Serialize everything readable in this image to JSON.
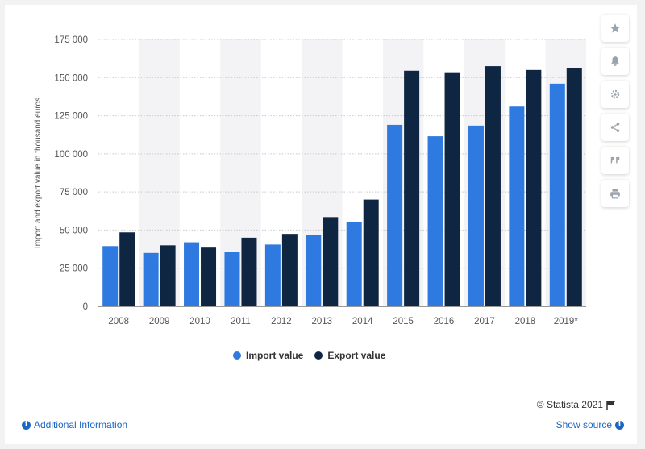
{
  "chart_data": {
    "type": "bar",
    "categories": [
      "2008",
      "2009",
      "2010",
      "2011",
      "2012",
      "2013",
      "2014",
      "2015",
      "2016",
      "2017",
      "2018",
      "2019*"
    ],
    "series": [
      {
        "name": "Import value",
        "color": "#2e7ae0",
        "values": [
          39500,
          35000,
          42000,
          35500,
          40500,
          47000,
          55500,
          119000,
          111500,
          118500,
          131000,
          146000
        ]
      },
      {
        "name": "Export value",
        "color": "#0f2642",
        "values": [
          48500,
          40000,
          38500,
          45000,
          47500,
          58500,
          70000,
          154500,
          153500,
          157500,
          155000,
          156500
        ]
      }
    ],
    "ylabel": "Import and export value in thousand euros",
    "xlabel": "",
    "ylim": [
      0,
      175000
    ],
    "yticks": [
      "0",
      "25 000",
      "50 000",
      "75 000",
      "100 000",
      "125 000",
      "150 000",
      "175 000"
    ],
    "grid": true,
    "legend_position": "bottom"
  },
  "toolbar": {
    "icons": [
      "star-icon",
      "bell-icon",
      "gear-icon",
      "share-icon",
      "quote-icon",
      "print-icon"
    ]
  },
  "footer": {
    "credit": "© Statista 2021",
    "additional_info": "Additional Information",
    "show_source": "Show source"
  }
}
